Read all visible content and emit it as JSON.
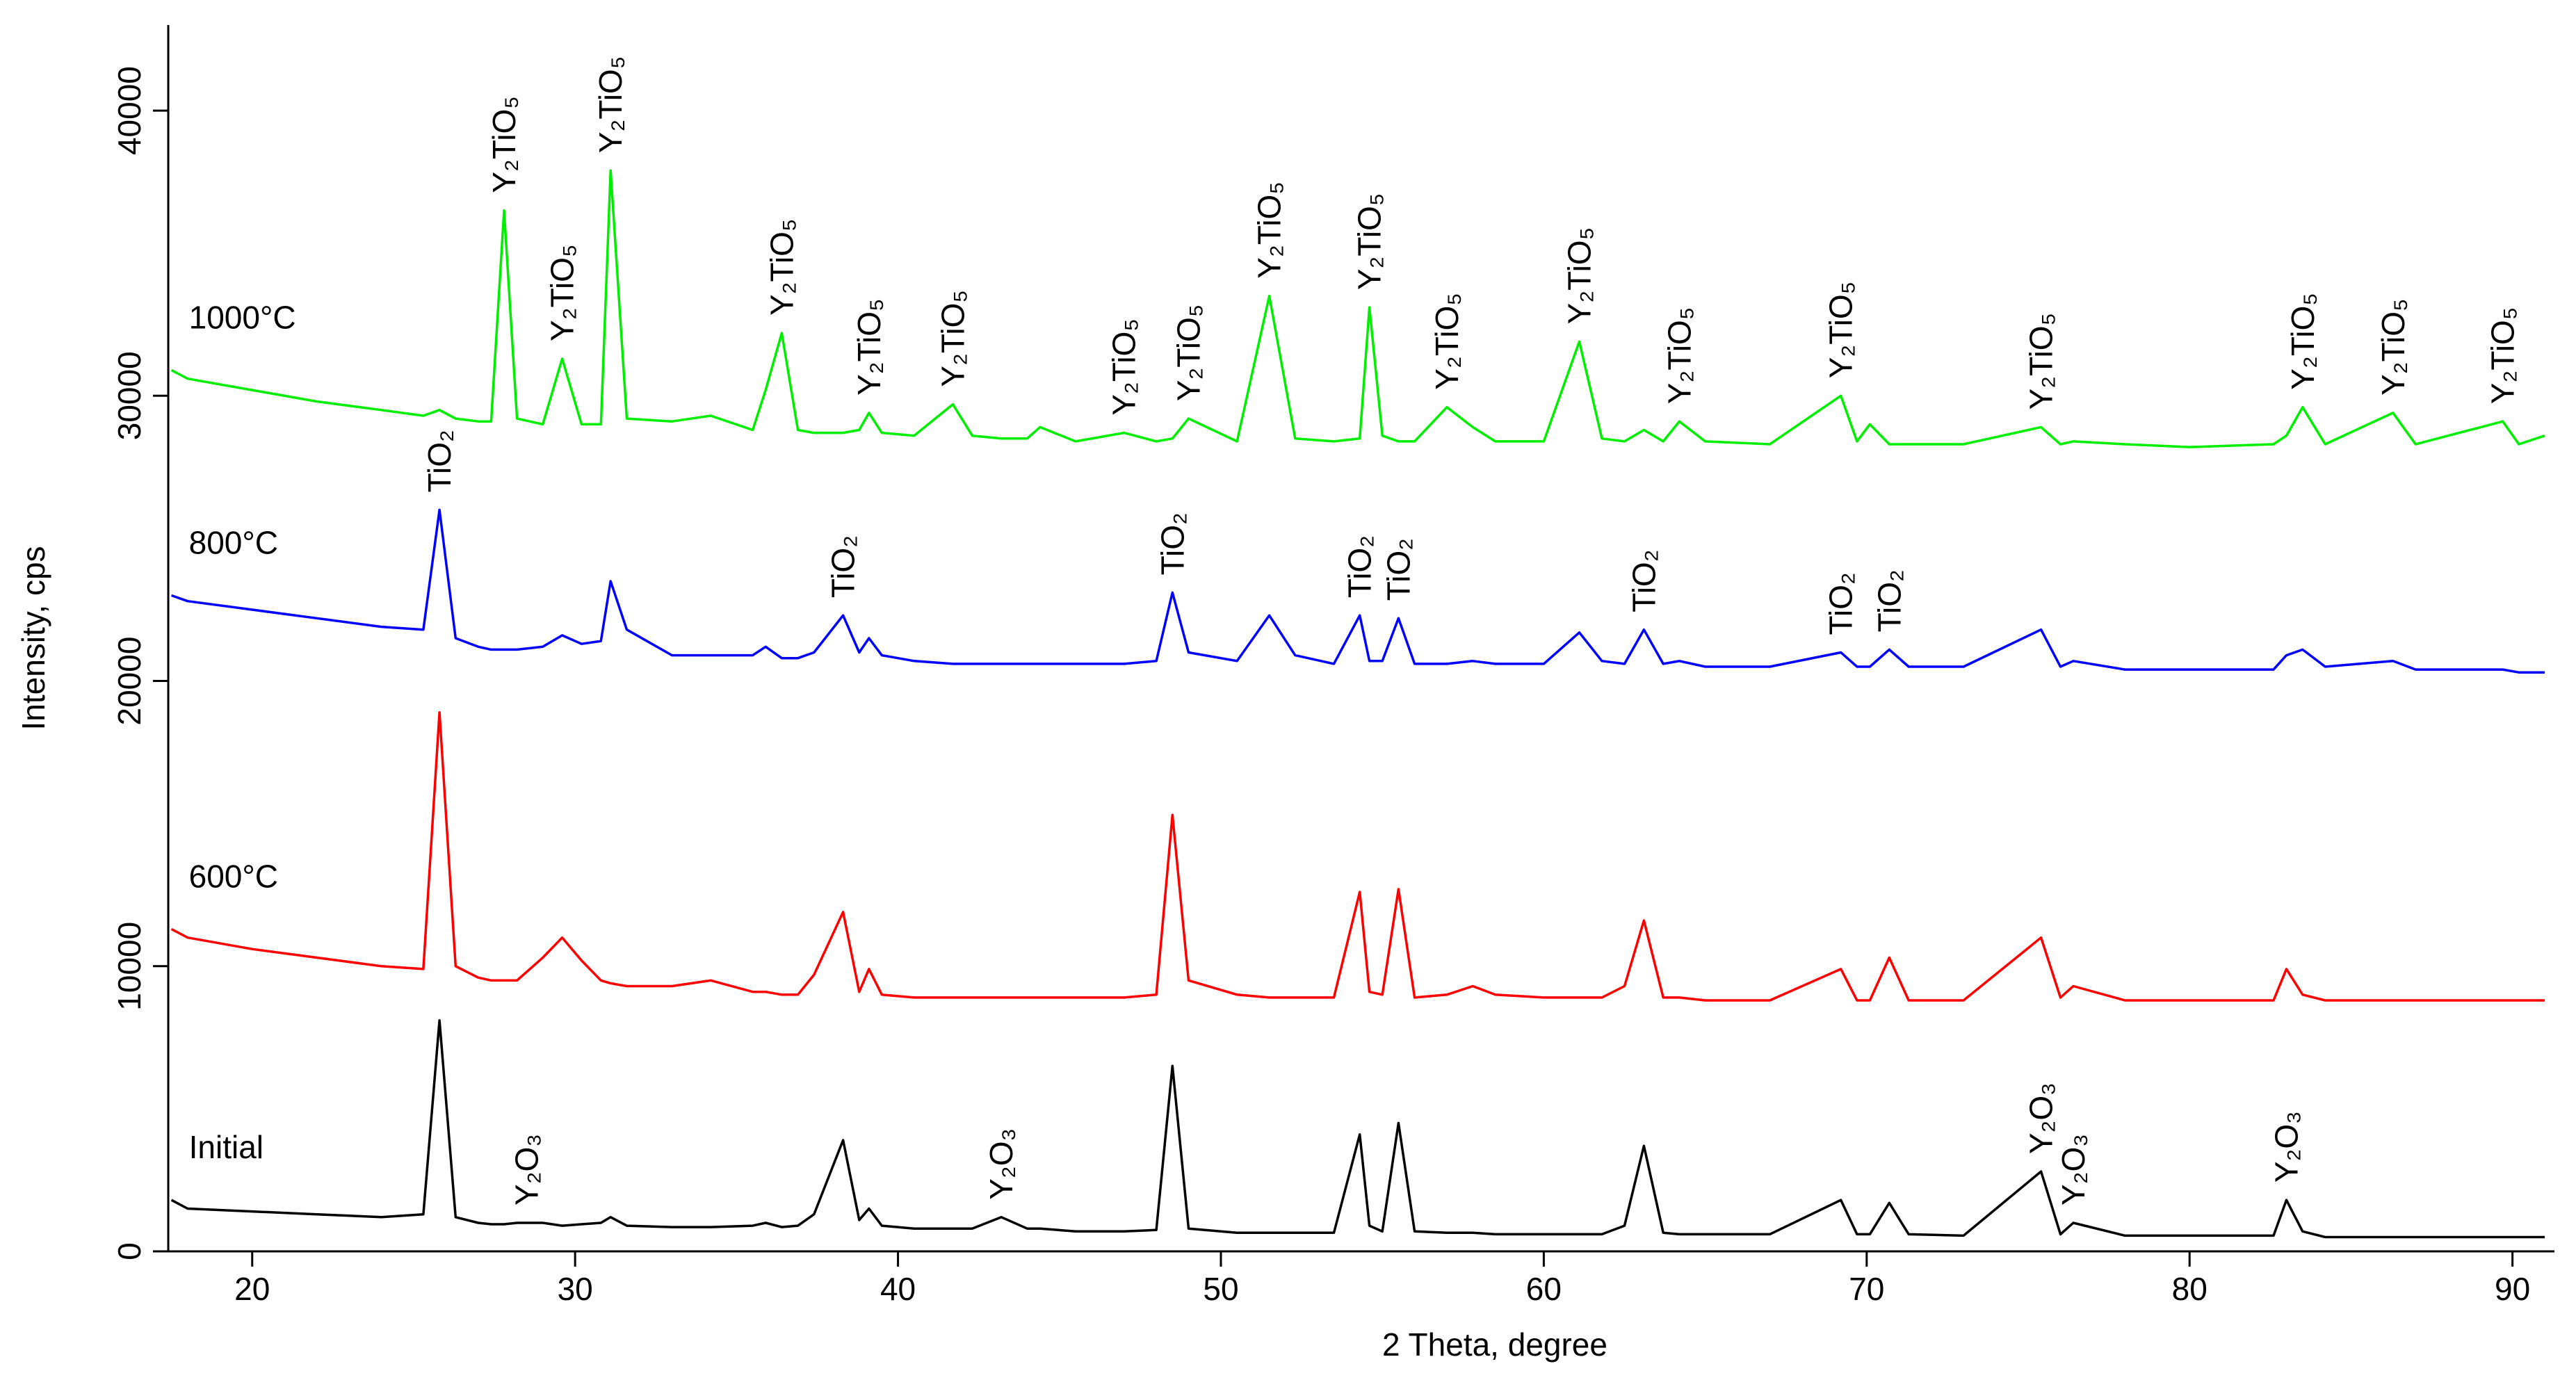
{
  "chart_data": {
    "type": "line",
    "x_label": "2 Theta, degree",
    "y_label": "Intensity, cps",
    "xlim": [
      17.4,
      91.3
    ],
    "xticks": [
      20,
      30,
      40,
      50,
      60,
      70,
      80,
      90
    ],
    "ylim": [
      0,
      43000
    ],
    "yticks": [
      0,
      10000,
      20000,
      30000,
      40000
    ],
    "x": [
      17.5,
      18,
      20,
      22,
      24,
      25.3,
      25.8,
      26.3,
      27,
      27.4,
      27.8,
      28.2,
      29,
      29.6,
      30.2,
      30.8,
      31.1,
      31.6,
      33,
      34.2,
      35.5,
      35.9,
      36.4,
      36.9,
      37.4,
      38.3,
      38.8,
      39.1,
      39.5,
      40.5,
      41.7,
      42.3,
      43.2,
      44,
      44.4,
      45.5,
      47,
      48,
      48.5,
      49,
      50.5,
      51.5,
      52.3,
      53.5,
      54.3,
      54.6,
      55,
      55.5,
      56,
      57,
      57.8,
      58.5,
      60,
      61.1,
      61.8,
      62.5,
      63.1,
      63.7,
      64.2,
      65,
      67,
      69.2,
      69.7,
      70.1,
      70.7,
      71.3,
      73,
      75.4,
      76,
      76.4,
      78,
      80,
      82.6,
      83,
      83.5,
      84.2,
      86.3,
      87,
      89.7,
      90.2,
      91
    ],
    "series": [
      {
        "name": "Initial",
        "color": "#000000",
        "values": [
          1800,
          1500,
          1400,
          1300,
          1200,
          1300,
          8100,
          1200,
          1000,
          950,
          950,
          1000,
          1000,
          900,
          950,
          1000,
          1200,
          900,
          850,
          850,
          900,
          1000,
          850,
          900,
          1300,
          3900,
          1100,
          1500,
          900,
          800,
          800,
          800,
          1200,
          800,
          800,
          700,
          700,
          750,
          6500,
          800,
          650,
          650,
          650,
          650,
          4100,
          900,
          700,
          4500,
          700,
          650,
          650,
          600,
          600,
          600,
          600,
          900,
          3700,
          650,
          600,
          600,
          600,
          1800,
          600,
          600,
          1700,
          600,
          550,
          2800,
          600,
          1000,
          550,
          550,
          550,
          1800,
          700,
          500,
          500,
          500,
          500,
          500,
          500
        ],
        "annotations": [
          {
            "text": "Y₂O₃",
            "x": 28.5
          },
          {
            "text": "Y₂O₃",
            "x": 43.2
          },
          {
            "text": "Y₂O₃",
            "x": 75.4
          },
          {
            "text": "Y₂O₃",
            "x": 76.4
          },
          {
            "text": "Y₂O₃",
            "x": 83.0
          }
        ]
      },
      {
        "name": "600°C",
        "color": "#ff0000",
        "values": [
          11300,
          11000,
          10600,
          10300,
          10000,
          9900,
          18900,
          10000,
          9600,
          9500,
          9500,
          9500,
          10300,
          11000,
          10200,
          9500,
          9400,
          9300,
          9300,
          9500,
          9100,
          9100,
          9000,
          9000,
          9700,
          11900,
          9100,
          9900,
          9000,
          8900,
          8900,
          8900,
          8900,
          8900,
          8900,
          8900,
          8900,
          9000,
          15300,
          9500,
          9000,
          8900,
          8900,
          8900,
          12600,
          9100,
          9000,
          12700,
          8900,
          9000,
          9300,
          9000,
          8900,
          8900,
          8900,
          9300,
          11600,
          8900,
          8900,
          8800,
          8800,
          9900,
          8800,
          8800,
          10300,
          8800,
          8800,
          11000,
          8900,
          9300,
          8800,
          8800,
          8800,
          9900,
          9000,
          8800,
          8800,
          8800,
          8800,
          8800,
          8800
        ]
      },
      {
        "name": "800°C",
        "color": "#0000ff",
        "values": [
          23000,
          22800,
          22500,
          22200,
          21900,
          21800,
          26000,
          21500,
          21200,
          21100,
          21100,
          21100,
          21200,
          21600,
          21300,
          21400,
          23500,
          21800,
          20900,
          20900,
          20900,
          21200,
          20800,
          20800,
          21000,
          22300,
          21000,
          21500,
          20900,
          20700,
          20600,
          20600,
          20600,
          20600,
          20600,
          20600,
          20600,
          20700,
          23100,
          21000,
          20700,
          22300,
          20900,
          20600,
          22300,
          20700,
          20700,
          22200,
          20600,
          20600,
          20700,
          20600,
          20600,
          21700,
          20700,
          20600,
          21800,
          20600,
          20700,
          20500,
          20500,
          21000,
          20500,
          20500,
          21100,
          20500,
          20500,
          21800,
          20500,
          20700,
          20400,
          20400,
          20400,
          20900,
          21100,
          20500,
          20700,
          20400,
          20400,
          20300,
          20300
        ],
        "annotations": [
          {
            "text": "TiO₂",
            "x": 25.8
          },
          {
            "text": "TiO₂",
            "x": 38.3
          },
          {
            "text": "TiO₂",
            "x": 48.5
          },
          {
            "text": "TiO₂",
            "x": 54.3
          },
          {
            "text": "TiO₂",
            "x": 55.5
          },
          {
            "text": "TiO₂",
            "x": 63.1
          },
          {
            "text": "TiO₂",
            "x": 69.2
          },
          {
            "text": "TiO₂",
            "x": 70.7
          }
        ]
      },
      {
        "name": "1000°C",
        "color": "#00ee00",
        "values": [
          30900,
          30600,
          30200,
          29800,
          29500,
          29300,
          29500,
          29200,
          29100,
          29100,
          36500,
          29200,
          29000,
          31300,
          29000,
          29000,
          37900,
          29200,
          29100,
          29300,
          28800,
          30200,
          32200,
          28800,
          28700,
          28700,
          28800,
          29400,
          28700,
          28600,
          29700,
          28600,
          28500,
          28500,
          28900,
          28400,
          28700,
          28400,
          28500,
          29200,
          28400,
          33500,
          28500,
          28400,
          28500,
          33100,
          28600,
          28400,
          28400,
          29600,
          28900,
          28400,
          28400,
          31900,
          28500,
          28400,
          28800,
          28400,
          29100,
          28400,
          28300,
          30000,
          28400,
          29000,
          28300,
          28300,
          28300,
          28900,
          28300,
          28400,
          28300,
          28200,
          28300,
          28600,
          29600,
          28300,
          29400,
          28300,
          29100,
          28300,
          28600
        ],
        "annotations": [
          {
            "text": "Y₂TiO₅",
            "x": 27.8
          },
          {
            "text": "Y₂TiO₅",
            "x": 29.6
          },
          {
            "text": "Y₂TiO₅",
            "x": 31.1
          },
          {
            "text": "Y₂TiO₅",
            "x": 36.4
          },
          {
            "text": "Y₂TiO₅",
            "x": 39.1
          },
          {
            "text": "Y₂TiO₅",
            "x": 41.7
          },
          {
            "text": "Y₂TiO₅",
            "x": 47.0
          },
          {
            "text": "Y₂TiO₅",
            "x": 49.0
          },
          {
            "text": "Y₂TiO₅",
            "x": 51.5
          },
          {
            "text": "Y₂TiO₅",
            "x": 54.6
          },
          {
            "text": "Y₂TiO₅",
            "x": 57.0
          },
          {
            "text": "Y₂TiO₅",
            "x": 61.1
          },
          {
            "text": "Y₂TiO₅",
            "x": 64.2
          },
          {
            "text": "Y₂TiO₅",
            "x": 69.2
          },
          {
            "text": "Y₂TiO₅",
            "x": 75.4
          },
          {
            "text": "Y₂TiO₅",
            "x": 83.5
          },
          {
            "text": "Y₂TiO₅",
            "x": 86.3
          },
          {
            "text": "Y₂TiO₅",
            "x": 89.7
          }
        ]
      }
    ]
  }
}
